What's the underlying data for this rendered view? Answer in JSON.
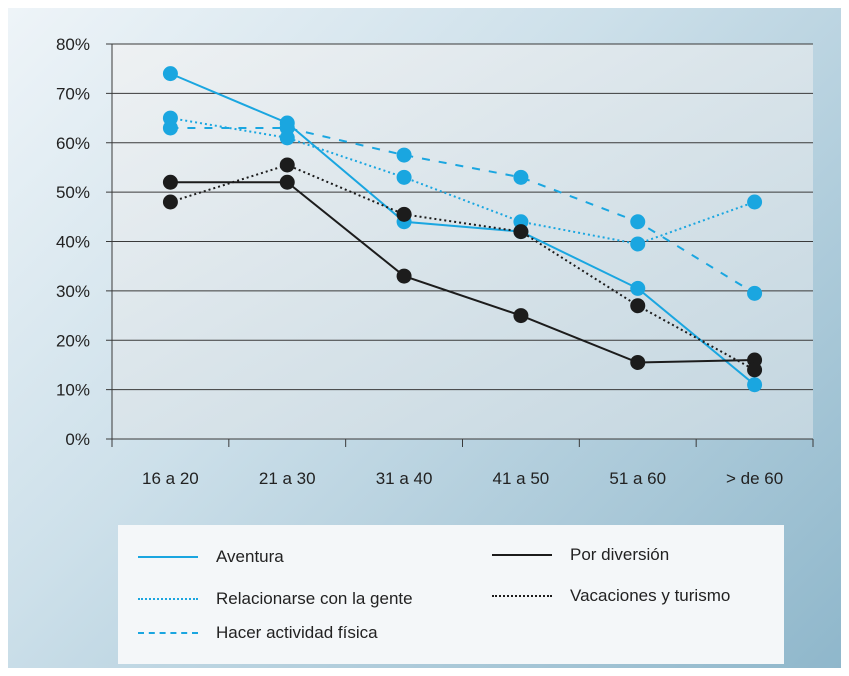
{
  "chart_data": {
    "type": "line",
    "categories": [
      "16 a 20",
      "21 a 30",
      "31 a 40",
      "41 a 50",
      "51 a 60",
      "> de 60"
    ],
    "yticks": [
      "0%",
      "10%",
      "20%",
      "30%",
      "40%",
      "50%",
      "60%",
      "70%",
      "80%"
    ],
    "ylim": [
      0,
      80
    ],
    "grid": true,
    "legend_position": "bottom",
    "series": [
      {
        "name": "Aventura",
        "color": "#1aa6e0",
        "style": "solid",
        "values": [
          74,
          64,
          44,
          42,
          30.5,
          11
        ]
      },
      {
        "name": "Relacionarse con la gente",
        "color": "#1aa6e0",
        "style": "dotted",
        "values": [
          65,
          61,
          53,
          44,
          39.5,
          48
        ]
      },
      {
        "name": "Hacer actividad física",
        "color": "#1aa6e0",
        "style": "dashed",
        "values": [
          63,
          63,
          57.5,
          53,
          44,
          29.5
        ]
      },
      {
        "name": "Por diversión",
        "color": "#1c1c1c",
        "style": "solid",
        "values": [
          52,
          52,
          33,
          25,
          15.5,
          16
        ]
      },
      {
        "name": "Vacaciones y turismo",
        "color": "#1c1c1c",
        "style": "dotted",
        "values": [
          48,
          55.5,
          45.5,
          42,
          27,
          14
        ]
      }
    ]
  }
}
